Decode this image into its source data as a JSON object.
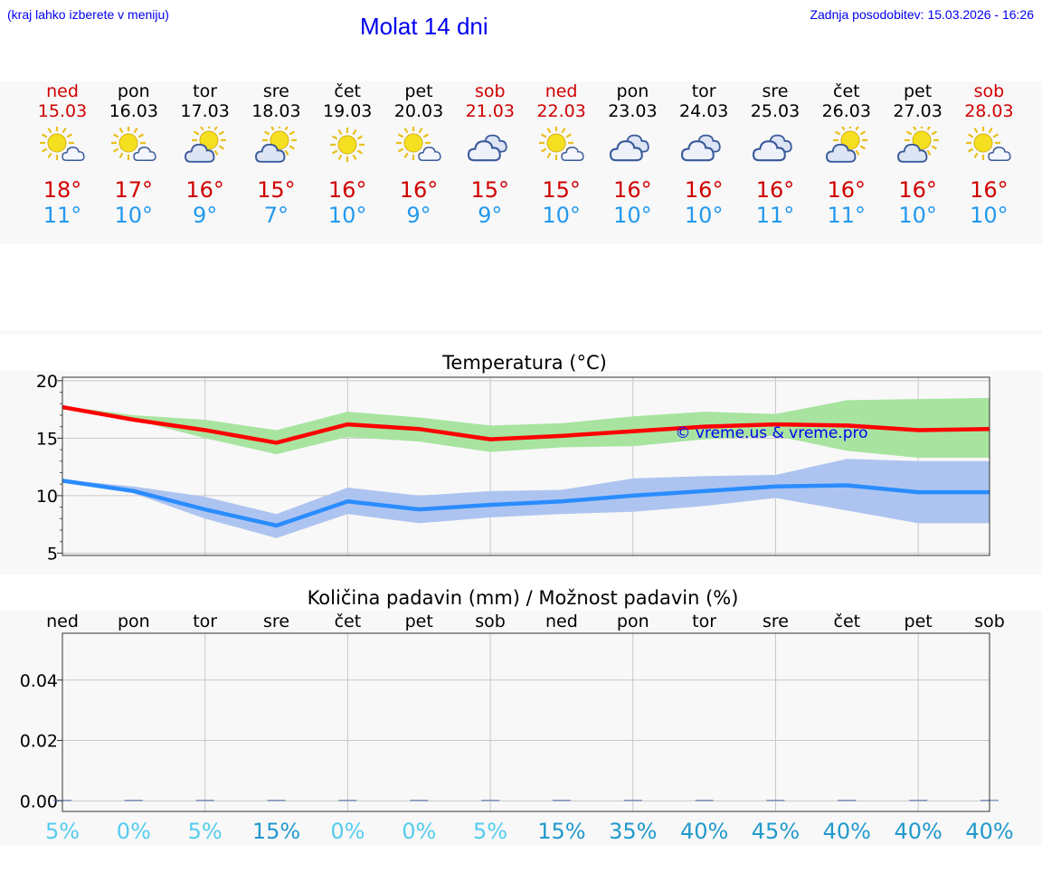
{
  "header": {
    "note": "(kraj lahko izberete v meniju)",
    "title": "Molat 14 dni",
    "updated": "Zadnja posodobitev: 15.03.2026 - 16:26"
  },
  "forecast": [
    {
      "day": "ned",
      "date": "15.03",
      "weekend": true,
      "icon": "sun-cloud",
      "max": "18°",
      "min": "11°"
    },
    {
      "day": "pon",
      "date": "16.03",
      "weekend": false,
      "icon": "sun-cloud",
      "max": "17°",
      "min": "10°"
    },
    {
      "day": "tor",
      "date": "17.03",
      "weekend": false,
      "icon": "sun-behind-cloud",
      "max": "16°",
      "min": "9°"
    },
    {
      "day": "sre",
      "date": "18.03",
      "weekend": false,
      "icon": "sun-behind-cloud",
      "max": "15°",
      "min": "7°"
    },
    {
      "day": "čet",
      "date": "19.03",
      "weekend": false,
      "icon": "sun",
      "max": "16°",
      "min": "10°"
    },
    {
      "day": "pet",
      "date": "20.03",
      "weekend": false,
      "icon": "sun-cloud",
      "max": "16°",
      "min": "9°"
    },
    {
      "day": "sob",
      "date": "21.03",
      "weekend": true,
      "icon": "cloud",
      "max": "15°",
      "min": "9°"
    },
    {
      "day": "ned",
      "date": "22.03",
      "weekend": true,
      "icon": "sun-cloud",
      "max": "15°",
      "min": "10°"
    },
    {
      "day": "pon",
      "date": "23.03",
      "weekend": false,
      "icon": "cloud",
      "max": "16°",
      "min": "10°"
    },
    {
      "day": "tor",
      "date": "24.03",
      "weekend": false,
      "icon": "cloud",
      "max": "16°",
      "min": "10°"
    },
    {
      "day": "sre",
      "date": "25.03",
      "weekend": false,
      "icon": "cloud",
      "max": "16°",
      "min": "11°"
    },
    {
      "day": "čet",
      "date": "26.03",
      "weekend": false,
      "icon": "sun-behind-cloud",
      "max": "16°",
      "min": "11°"
    },
    {
      "day": "pet",
      "date": "27.03",
      "weekend": false,
      "icon": "sun-behind-cloud",
      "max": "16°",
      "min": "10°"
    },
    {
      "day": "sob",
      "date": "28.03",
      "weekend": true,
      "icon": "sun-cloud",
      "max": "16°",
      "min": "10°"
    }
  ],
  "colors": {
    "weekend": "#d00000",
    "tmax": "#d00000",
    "tmin": "#2299ee",
    "max_line": "#ff0000",
    "max_band": "#a8e4a0",
    "min_line": "#2a8cff",
    "min_band": "#aec4f0",
    "watermark": "#0000ee",
    "pct_low": "#55ccee",
    "pct_high": "#2299cc"
  },
  "chart_data": [
    {
      "type": "line",
      "title": "Temperatura (°C)",
      "watermark": "© vreme.us & vreme.pro",
      "ylim": [
        4.8,
        20.3
      ],
      "yticks": [
        5,
        10,
        15,
        20
      ],
      "x": [
        0,
        1,
        2,
        3,
        4,
        5,
        6,
        7,
        8,
        9,
        10,
        11,
        12,
        13
      ],
      "series": [
        {
          "name": "max",
          "values": [
            17.7,
            16.6,
            15.7,
            14.6,
            16.2,
            15.8,
            14.9,
            15.2,
            15.6,
            16.0,
            16.2,
            16.1,
            15.7,
            15.8
          ],
          "band_low": [
            17.6,
            16.6,
            15.0,
            13.6,
            15.1,
            14.7,
            13.8,
            14.2,
            14.3,
            14.9,
            15.2,
            13.9,
            13.3,
            13.3
          ],
          "band_high": [
            17.8,
            17.0,
            16.6,
            15.7,
            17.3,
            16.8,
            16.1,
            16.3,
            16.9,
            17.3,
            17.1,
            18.3,
            18.4,
            18.5
          ]
        },
        {
          "name": "min",
          "values": [
            11.3,
            10.4,
            8.8,
            7.4,
            9.5,
            8.8,
            9.2,
            9.5,
            10.0,
            10.4,
            10.8,
            10.9,
            10.3,
            10.3
          ],
          "band_low": [
            11.2,
            10.2,
            8.0,
            6.3,
            8.4,
            7.6,
            8.1,
            8.4,
            8.6,
            9.1,
            9.8,
            8.7,
            7.6,
            7.6
          ],
          "band_high": [
            11.4,
            10.8,
            9.9,
            8.4,
            10.7,
            10.0,
            10.4,
            10.5,
            11.5,
            11.7,
            11.8,
            13.2,
            13.0,
            13.0
          ]
        }
      ]
    },
    {
      "type": "bar",
      "title": "Količina padavin (mm) / Možnost padavin (%)",
      "categories": [
        "ned",
        "pon",
        "tor",
        "sre",
        "čet",
        "pet",
        "sob",
        "ned",
        "pon",
        "tor",
        "sre",
        "čet",
        "pet",
        "sob"
      ],
      "ylim": [
        -0.0035,
        0.0555
      ],
      "yticks": [
        "0.00",
        "0.02",
        "0.04"
      ],
      "ytick_values": [
        0,
        0.02,
        0.04
      ],
      "values": [
        0,
        0,
        0,
        0,
        0,
        0,
        0,
        0,
        0,
        0,
        0,
        0,
        0,
        0
      ],
      "chance": [
        "5%",
        "0%",
        "5%",
        "15%",
        "0%",
        "0%",
        "5%",
        "15%",
        "35%",
        "40%",
        "45%",
        "40%",
        "40%",
        "40%"
      ],
      "chance_values": [
        5,
        0,
        5,
        15,
        0,
        0,
        5,
        15,
        35,
        40,
        45,
        40,
        40,
        40
      ]
    }
  ]
}
